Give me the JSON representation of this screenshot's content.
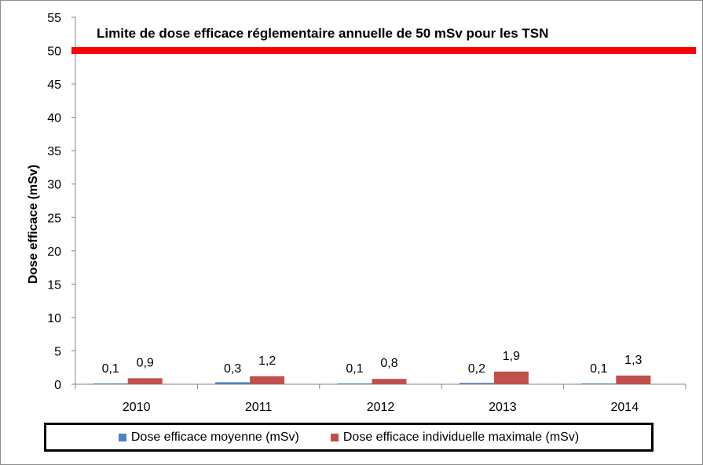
{
  "chart_data": {
    "type": "bar",
    "categories": [
      "2010",
      "2011",
      "2012",
      "2013",
      "2014"
    ],
    "series": [
      {
        "name": "Dose efficace moyenne (mSv)",
        "values": [
          0.1,
          0.3,
          0.1,
          0.2,
          0.1
        ],
        "labels": [
          "0,1",
          "0,3",
          "0,1",
          "0,2",
          "0,1"
        ],
        "color": "#4f81bd"
      },
      {
        "name": "Dose efficace individuelle maximale (mSv)",
        "values": [
          0.9,
          1.2,
          0.8,
          1.9,
          1.3
        ],
        "labels": [
          "0,9",
          "1,2",
          "0,8",
          "1,9",
          "1,3"
        ],
        "color": "#c0504d"
      }
    ],
    "ylabel": "Dose efficace  (mSv)",
    "ylim": [
      0,
      55
    ],
    "yticks": [
      0,
      5,
      10,
      15,
      20,
      25,
      30,
      35,
      40,
      45,
      50,
      55
    ],
    "reference_line": {
      "value": 50,
      "label": "Limite de dose efficace réglementaire annuelle de 50 mSv pour  les TSN",
      "color": "#ff0000"
    },
    "legend_position": "bottom",
    "grid": false
  }
}
